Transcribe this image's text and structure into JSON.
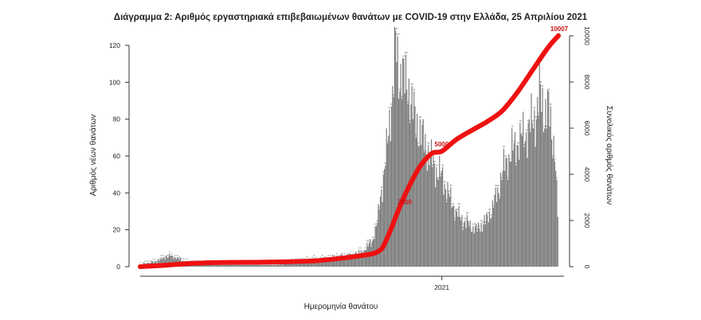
{
  "chart_data": {
    "type": "bar",
    "title": "Διάγραμμα 2: Αριθμός εργαστηριακά επιβεβαιωμένων θανάτων με COVID-19 στην Ελλάδα, 25 Απριλίου 2021",
    "xlabel": "Ημερομηνία θανάτου",
    "ylabel_left": "Αριθμός νέων θανάτων",
    "ylabel_right": "Συνολικός αριθμός θανάτων",
    "x_start": "2020-03-12",
    "x_end": "2021-04-25",
    "x_ticks": [
      {
        "date": "2021-01-01",
        "label": "2021"
      }
    ],
    "ylim_left": [
      0,
      125
    ],
    "yticks_left": [
      0,
      20,
      40,
      60,
      80,
      100,
      120
    ],
    "ylim_right": [
      0,
      10400
    ],
    "yticks_right": [
      0,
      2000,
      4000,
      6000,
      8000,
      10000
    ],
    "bar_color": "#7a7a7a",
    "line_color": "#ee1111",
    "series": [
      {
        "name": "Αριθμός νέων θανάτων",
        "type": "bar",
        "axis": "left",
        "points": [
          [
            "2020-03-12",
            1
          ],
          [
            "2020-03-20",
            2
          ],
          [
            "2020-03-28",
            3
          ],
          [
            "2020-04-03",
            5
          ],
          [
            "2020-04-10",
            6
          ],
          [
            "2020-04-20",
            4
          ],
          [
            "2020-05-01",
            2
          ],
          [
            "2020-05-15",
            1
          ],
          [
            "2020-06-01",
            1
          ],
          [
            "2020-06-15",
            1
          ],
          [
            "2020-07-01",
            1
          ],
          [
            "2020-07-20",
            1
          ],
          [
            "2020-08-01",
            2
          ],
          [
            "2020-08-15",
            3
          ],
          [
            "2020-09-01",
            4
          ],
          [
            "2020-09-15",
            5
          ],
          [
            "2020-10-01",
            6
          ],
          [
            "2020-10-15",
            8
          ],
          [
            "2020-10-25",
            14
          ],
          [
            "2020-10-30",
            24
          ],
          [
            "2020-11-02",
            38
          ],
          [
            "2020-11-05",
            48
          ],
          [
            "2020-11-08",
            62
          ],
          [
            "2020-11-11",
            78
          ],
          [
            "2020-11-14",
            96
          ],
          [
            "2020-11-17",
            120
          ],
          [
            "2020-11-20",
            104
          ],
          [
            "2020-11-23",
            108
          ],
          [
            "2020-11-26",
            98
          ],
          [
            "2020-11-29",
            100
          ],
          [
            "2020-12-02",
            90
          ],
          [
            "2020-12-05",
            82
          ],
          [
            "2020-12-08",
            78
          ],
          [
            "2020-12-11",
            72
          ],
          [
            "2020-12-15",
            68
          ],
          [
            "2020-12-20",
            60
          ],
          [
            "2020-12-25",
            54
          ],
          [
            "2020-12-31",
            50
          ],
          [
            "2021-01-05",
            44
          ],
          [
            "2021-01-10",
            36
          ],
          [
            "2021-01-15",
            30
          ],
          [
            "2021-01-20",
            26
          ],
          [
            "2021-01-25",
            24
          ],
          [
            "2021-01-30",
            22
          ],
          [
            "2021-02-05",
            20
          ],
          [
            "2021-02-10",
            23
          ],
          [
            "2021-02-15",
            26
          ],
          [
            "2021-02-20",
            32
          ],
          [
            "2021-02-25",
            40
          ],
          [
            "2021-03-01",
            50
          ],
          [
            "2021-03-05",
            56
          ],
          [
            "2021-03-10",
            62
          ],
          [
            "2021-03-15",
            66
          ],
          [
            "2021-03-20",
            70
          ],
          [
            "2021-03-25",
            72
          ],
          [
            "2021-03-30",
            78
          ],
          [
            "2021-04-03",
            80
          ],
          [
            "2021-04-07",
            94
          ],
          [
            "2021-04-11",
            84
          ],
          [
            "2021-04-15",
            88
          ],
          [
            "2021-04-19",
            72
          ],
          [
            "2021-04-22",
            66
          ],
          [
            "2021-04-25",
            28
          ]
        ]
      },
      {
        "name": "Συνολικός αριθμός θανάτων",
        "type": "line",
        "axis": "right",
        "points": [
          [
            "2020-03-12",
            0
          ],
          [
            "2020-04-01",
            50
          ],
          [
            "2020-05-01",
            140
          ],
          [
            "2020-06-01",
            180
          ],
          [
            "2020-07-01",
            190
          ],
          [
            "2020-08-01",
            210
          ],
          [
            "2020-09-01",
            260
          ],
          [
            "2020-10-01",
            400
          ],
          [
            "2020-10-25",
            560
          ],
          [
            "2020-11-01",
            700
          ],
          [
            "2020-11-05",
            900
          ],
          [
            "2020-11-12",
            1600
          ],
          [
            "2020-11-20",
            2500
          ],
          [
            "2020-11-28",
            3300
          ],
          [
            "2020-12-10",
            4300
          ],
          [
            "2020-12-22",
            4900
          ],
          [
            "2021-01-01",
            5000
          ],
          [
            "2021-01-15",
            5500
          ],
          [
            "2021-02-01",
            5950
          ],
          [
            "2021-02-15",
            6300
          ],
          [
            "2021-03-01",
            6750
          ],
          [
            "2021-03-15",
            7500
          ],
          [
            "2021-04-01",
            8600
          ],
          [
            "2021-04-15",
            9500
          ],
          [
            "2021-04-25",
            10007
          ]
        ]
      }
    ],
    "annotations": [
      {
        "date": "2020-11-25",
        "value": 2500,
        "label": "2500"
      },
      {
        "date": "2020-12-31",
        "value": 5000,
        "label": "5000"
      },
      {
        "date": "2021-04-25",
        "value": 10007,
        "label": "10007"
      }
    ]
  }
}
